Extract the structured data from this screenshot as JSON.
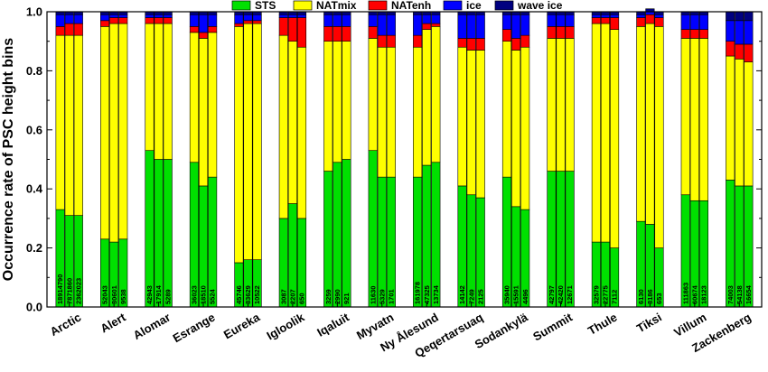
{
  "chart_data": {
    "type": "bar",
    "stacked": true,
    "ylabel": "Occurrence rate of PSC height bins",
    "xlabel": "",
    "ylim": [
      0,
      1.0
    ],
    "yticks": [
      "0.0",
      "0.2",
      "0.4",
      "0.6",
      "0.8",
      "1.0"
    ],
    "legend_position": "top",
    "series_names": [
      "STS",
      "NATmix",
      "NATenh",
      "ice",
      "wave ice"
    ],
    "colors": {
      "STS": "#00e000",
      "NATmix": "#ffff00",
      "NATenh": "#ff0000",
      "ice": "#0000ff",
      "wave ice": "#000080"
    },
    "stations": [
      {
        "name": "Arctic",
        "bars": [
          {
            "count": "18914790",
            "values": [
              0.33,
              0.59,
              0.03,
              0.04,
              0.01
            ]
          },
          {
            "count": "7871860",
            "values": [
              0.31,
              0.61,
              0.04,
              0.03,
              0.01
            ]
          },
          {
            "count": "2362023",
            "values": [
              0.31,
              0.61,
              0.04,
              0.03,
              0.01
            ]
          }
        ]
      },
      {
        "name": "Alert",
        "bars": [
          {
            "count": "52043",
            "values": [
              0.23,
              0.72,
              0.02,
              0.02,
              0.01
            ]
          },
          {
            "count": "30601",
            "values": [
              0.22,
              0.74,
              0.02,
              0.01,
              0.01
            ]
          },
          {
            "count": "9538",
            "values": [
              0.23,
              0.73,
              0.02,
              0.01,
              0.01
            ]
          }
        ]
      },
      {
        "name": "Alomar",
        "bars": [
          {
            "count": "42943",
            "values": [
              0.53,
              0.43,
              0.02,
              0.01,
              0.01
            ]
          },
          {
            "count": "17914",
            "values": [
              0.5,
              0.46,
              0.02,
              0.01,
              0.01
            ]
          },
          {
            "count": "5289",
            "values": [
              0.5,
              0.46,
              0.02,
              0.01,
              0.01
            ]
          }
        ]
      },
      {
        "name": "Esrange",
        "bars": [
          {
            "count": "36023",
            "values": [
              0.49,
              0.44,
              0.02,
              0.04,
              0.01
            ]
          },
          {
            "count": "18510",
            "values": [
              0.41,
              0.5,
              0.02,
              0.06,
              0.01
            ]
          },
          {
            "count": "5524",
            "values": [
              0.44,
              0.49,
              0.02,
              0.04,
              0.01
            ]
          }
        ]
      },
      {
        "name": "Eureka",
        "bars": [
          {
            "count": "45746",
            "values": [
              0.15,
              0.8,
              0.01,
              0.03,
              0.01
            ]
          },
          {
            "count": "33629",
            "values": [
              0.16,
              0.8,
              0.01,
              0.02,
              0.01
            ]
          },
          {
            "count": "10522",
            "values": [
              0.16,
              0.8,
              0.01,
              0.02,
              0.01
            ]
          }
        ]
      },
      {
        "name": "Igloolik",
        "bars": [
          {
            "count": "3087",
            "values": [
              0.3,
              0.62,
              0.06,
              0.01,
              0.01
            ]
          },
          {
            "count": "2207",
            "values": [
              0.35,
              0.55,
              0.08,
              0.01,
              0.01
            ]
          },
          {
            "count": "650",
            "values": [
              0.3,
              0.58,
              0.1,
              0.01,
              0.01
            ]
          }
        ]
      },
      {
        "name": "Iqaluit",
        "bars": [
          {
            "count": "3259",
            "values": [
              0.46,
              0.44,
              0.05,
              0.04,
              0.01
            ]
          },
          {
            "count": "2990",
            "values": [
              0.49,
              0.41,
              0.05,
              0.04,
              0.01
            ]
          },
          {
            "count": "921",
            "values": [
              0.5,
              0.4,
              0.05,
              0.04,
              0.01
            ]
          }
        ]
      },
      {
        "name": "Myvatn",
        "bars": [
          {
            "count": "11630",
            "values": [
              0.53,
              0.38,
              0.04,
              0.04,
              0.01
            ]
          },
          {
            "count": "5329",
            "values": [
              0.44,
              0.44,
              0.04,
              0.07,
              0.01
            ]
          },
          {
            "count": "1701",
            "values": [
              0.44,
              0.44,
              0.04,
              0.07,
              0.01
            ]
          }
        ]
      },
      {
        "name": "Ny Ålesund",
        "bars": [
          {
            "count": "161978",
            "values": [
              0.44,
              0.44,
              0.04,
              0.07,
              0.01
            ]
          },
          {
            "count": "47325",
            "values": [
              0.48,
              0.46,
              0.02,
              0.03,
              0.01
            ]
          },
          {
            "count": "13734",
            "values": [
              0.49,
              0.46,
              0.01,
              0.03,
              0.01
            ]
          }
        ]
      },
      {
        "name": "Qeqertarsuaq",
        "bars": [
          {
            "count": "14142",
            "values": [
              0.41,
              0.47,
              0.03,
              0.08,
              0.01
            ]
          },
          {
            "count": "7249",
            "values": [
              0.38,
              0.49,
              0.04,
              0.08,
              0.01
            ]
          },
          {
            "count": "2125",
            "values": [
              0.37,
              0.5,
              0.04,
              0.08,
              0.01
            ]
          }
        ]
      },
      {
        "name": "Sodankylä",
        "bars": [
          {
            "count": "35940",
            "values": [
              0.44,
              0.46,
              0.04,
              0.05,
              0.01
            ]
          },
          {
            "count": "15591",
            "values": [
              0.34,
              0.53,
              0.04,
              0.08,
              0.01
            ]
          },
          {
            "count": "4496",
            "values": [
              0.33,
              0.55,
              0.04,
              0.07,
              0.01
            ]
          }
        ]
      },
      {
        "name": "Summit",
        "bars": [
          {
            "count": "42797",
            "values": [
              0.46,
              0.45,
              0.04,
              0.04,
              0.01
            ]
          },
          {
            "count": "42420",
            "values": [
              0.46,
              0.45,
              0.04,
              0.04,
              0.01
            ]
          },
          {
            "count": "12671",
            "values": [
              0.46,
              0.45,
              0.04,
              0.04,
              0.01
            ]
          }
        ]
      },
      {
        "name": "Thule",
        "bars": [
          {
            "count": "32579",
            "values": [
              0.22,
              0.74,
              0.02,
              0.01,
              0.01
            ]
          },
          {
            "count": "22775",
            "values": [
              0.22,
              0.74,
              0.02,
              0.01,
              0.01
            ]
          },
          {
            "count": "7112",
            "values": [
              0.2,
              0.74,
              0.04,
              0.01,
              0.01
            ]
          }
        ]
      },
      {
        "name": "Tiksi",
        "bars": [
          {
            "count": "6130",
            "values": [
              0.29,
              0.66,
              0.03,
              0.01,
              0.01
            ]
          },
          {
            "count": "3186",
            "values": [
              0.28,
              0.68,
              0.03,
              0.01,
              0.01
            ]
          },
          {
            "count": "653",
            "values": [
              0.2,
              0.75,
              0.03,
              0.01,
              0.01
            ]
          }
        ]
      },
      {
        "name": "Villum",
        "bars": [
          {
            "count": "111863",
            "values": [
              0.38,
              0.53,
              0.03,
              0.05,
              0.01
            ]
          },
          {
            "count": "60674",
            "values": [
              0.36,
              0.55,
              0.03,
              0.05,
              0.01
            ]
          },
          {
            "count": "18123",
            "values": [
              0.36,
              0.55,
              0.03,
              0.05,
              0.01
            ]
          }
        ]
      },
      {
        "name": "Zackenberg",
        "bars": [
          {
            "count": "74003",
            "values": [
              0.43,
              0.42,
              0.05,
              0.07,
              0.03
            ]
          },
          {
            "count": "54138",
            "values": [
              0.41,
              0.43,
              0.05,
              0.08,
              0.03
            ]
          },
          {
            "count": "16654",
            "values": [
              0.41,
              0.42,
              0.06,
              0.08,
              0.03
            ]
          }
        ]
      }
    ]
  }
}
